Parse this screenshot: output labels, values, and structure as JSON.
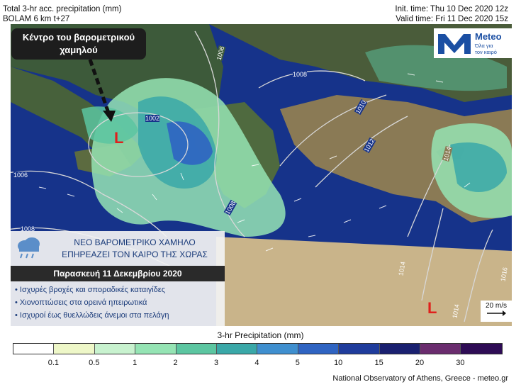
{
  "header": {
    "left_line1": "Total 3-hr acc. precipitation (mm)",
    "left_line2": "BOLAM 6 km t+27",
    "right_line1": "Init. time: Thu 10 Dec 2020 12z",
    "right_line2": "Valid time: Fri 11 Dec 2020 15z"
  },
  "callout": {
    "line1": "Κέντρο του βαρομετρικού",
    "line2": "χαμηλού"
  },
  "logo": {
    "name": "Meteo",
    "tagline1": "Όλα για",
    "tagline2": "τον καιρό"
  },
  "low_markers": [
    "L",
    "L"
  ],
  "isobars": [
    "1006",
    "1008",
    "1010",
    "1012",
    "1014",
    "1002",
    "1008",
    "1006",
    "1008",
    "1014",
    "1016",
    "1014"
  ],
  "info_box": {
    "line1": "ΝΕΟ ΒΑΡΟΜΕΤΡΙΚΟ ΧΑΜΗΛΟ",
    "line2": "ΕΠΗΡΕΑΖΕΙ ΤΟΝ ΚΑΙΡΟ ΤΗΣ ΧΩΡΑΣ",
    "date": "Παρασκευή 11 Δεκεμβρίου 2020",
    "bullets": [
      "• Ισχυρές βροχές και σποραδικές καταιγίδες",
      "• Χιονοπτώσεις στα ορεινά ηπειρωτικά",
      "• Ισχυροί έως θυελλώδεις άνεμοι στα πελάγη"
    ],
    "weather_icon": "rain-cloud-icon"
  },
  "wind_reference": {
    "label": "20 m/s",
    "icon": "arrow-right-icon"
  },
  "legend": {
    "title": "3-hr Precipitation (mm)",
    "colors": [
      "#ffffff",
      "#eef7c8",
      "#c8f2cf",
      "#95e4b4",
      "#5cc6a1",
      "#3aa8a8",
      "#3f8fcf",
      "#2f64c2",
      "#1f3c9c",
      "#1a2070",
      "#6a2c6e",
      "#2e0c55"
    ],
    "ticks": [
      "0.1",
      "0.5",
      "1",
      "2",
      "3",
      "4",
      "5",
      "10",
      "15",
      "20",
      "30"
    ]
  },
  "credit": "National Observatory of Athens, Greece - meteo.gr"
}
